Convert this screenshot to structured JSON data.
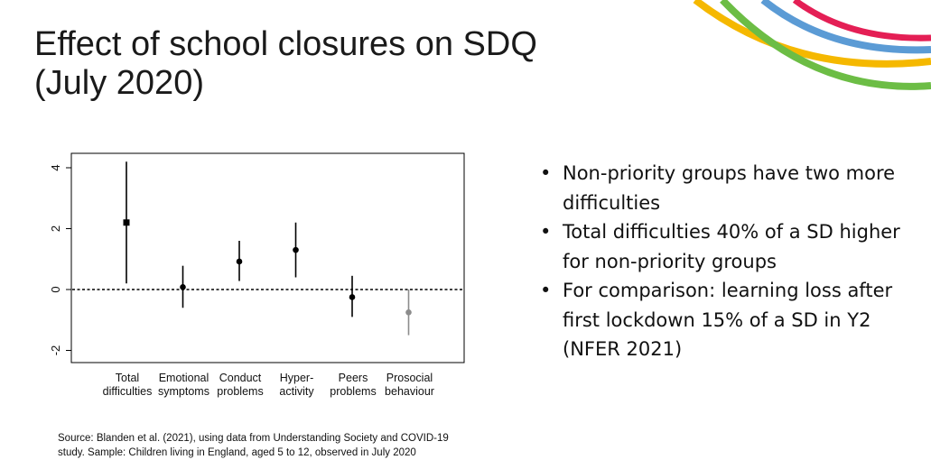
{
  "slide": {
    "title_lines": [
      "Effect of school closures on SDQ",
      "(July 2020)"
    ],
    "bullets": [
      "Non-priority groups have two more difficulties",
      "Total difficulties 40% of a SD higher for non-priority groups",
      "For comparison: learning loss after first lockdown 15% of a SD in Y2 (NFER 2021)"
    ],
    "source_lines": [
      "Source: Blanden et al. (2021), using data from Understanding Society and COVID-19",
      "study. Sample: Children living in England, aged 5 to 12, observed in July 2020"
    ],
    "decor_colors": [
      "#e41f55",
      "#5b9bd5",
      "#f5b800",
      "#6cbd45"
    ]
  },
  "chart_data": {
    "type": "scatter",
    "subtype": "coefficient plot with confidence intervals",
    "categories": [
      [
        "Total",
        "difficulties"
      ],
      [
        "Emotional",
        "symptoms"
      ],
      [
        "Conduct",
        "problems"
      ],
      [
        "Hyper-",
        "activity"
      ],
      [
        "Peers",
        "problems"
      ],
      [
        "Prosocial",
        "behaviour"
      ]
    ],
    "estimates": [
      2.2,
      0.08,
      0.92,
      1.3,
      -0.25,
      -0.75
    ],
    "ci_low": [
      0.2,
      -0.6,
      0.28,
      0.4,
      -0.9,
      -1.5
    ],
    "ci_high": [
      4.2,
      0.78,
      1.6,
      2.2,
      0.45,
      0.0
    ],
    "marker": [
      "square",
      "circle",
      "circle",
      "circle",
      "circle",
      "circle"
    ],
    "colors": [
      "#000000",
      "#000000",
      "#000000",
      "#000000",
      "#000000",
      "#8c8c8c"
    ],
    "yticks": [
      -2,
      0,
      2,
      4
    ],
    "ylim": [
      -2.5,
      4.5
    ],
    "reference_line": 0,
    "grid": false
  }
}
